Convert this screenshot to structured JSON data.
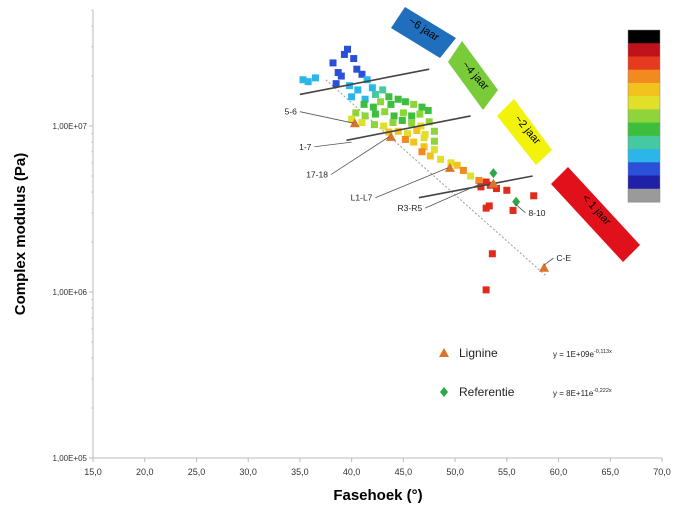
{
  "chart_data": {
    "type": "scatter",
    "xlabel": "Fasehoek (°)",
    "ylabel": "Complex modulus (Pa)",
    "xlim": [
      15,
      70
    ],
    "ylim": [
      100000,
      50000000
    ],
    "y_scale": "log",
    "x_ticks": [
      "15,0",
      "20,0",
      "25,0",
      "30,0",
      "35,0",
      "40,0",
      "45,0",
      "50,0",
      "55,0",
      "60,0",
      "65,0",
      "70,0"
    ],
    "y_ticks": [
      {
        "value": 100000,
        "label": "1,00E+05"
      },
      {
        "value": 1000000,
        "label": "1,00E+06"
      },
      {
        "value": 10000000,
        "label": "1,00E+07"
      }
    ],
    "grid": false,
    "colors": {
      "lignine": "#d9742a",
      "referentie": "#2aa84a",
      "fit_line": "#444444",
      "dashed_line": "#9a9a9a",
      "axis": "#bbbbbb"
    },
    "series": [
      {
        "name": "Lignine",
        "marker": "triangle",
        "color": "#d9742a",
        "points": [
          [
            40.3,
            10400000
          ],
          [
            43.8,
            8600000
          ],
          [
            49.5,
            5600000
          ],
          [
            53.7,
            4500000
          ],
          [
            58.6,
            1400000
          ]
        ]
      },
      {
        "name": "Referentie",
        "marker": "diamond",
        "color": "#2aa84a",
        "points": [
          [
            53.7,
            5200000
          ],
          [
            55.9,
            3500000
          ]
        ]
      },
      {
        "name": "",
        "marker": "square",
        "points": [
          [
            35.3,
            19000000,
            "#2ab7e8"
          ],
          [
            35.8,
            18500000,
            "#2ab7e8"
          ],
          [
            36.5,
            19500000,
            "#2ab7e8"
          ],
          [
            38.2,
            24000000,
            "#2a4fd8"
          ],
          [
            38.7,
            21000000,
            "#2a4fd8"
          ],
          [
            39.3,
            27000000,
            "#2a4fd8"
          ],
          [
            39.6,
            29000000,
            "#2a4fd8"
          ],
          [
            40.2,
            25500000,
            "#2a4fd8"
          ],
          [
            39.0,
            20000000,
            "#2a4fd8"
          ],
          [
            40.5,
            22000000,
            "#2a4fd8"
          ],
          [
            41.0,
            20500000,
            "#2a4fd8"
          ],
          [
            38.5,
            18000000,
            "#2a4fd8"
          ],
          [
            39.8,
            17500000,
            "#2ab7e8"
          ],
          [
            40.6,
            16500000,
            "#2ab7e8"
          ],
          [
            41.5,
            19000000,
            "#2ab7e8"
          ],
          [
            42.0,
            17000000,
            "#2ab7e8"
          ],
          [
            40.0,
            15000000,
            "#2ab7e8"
          ],
          [
            41.3,
            14500000,
            "#2ab7e8"
          ],
          [
            42.3,
            15500000,
            "#46c8a0"
          ],
          [
            43.0,
            16500000,
            "#46c8a0"
          ],
          [
            43.6,
            15000000,
            "#3dbf3d"
          ],
          [
            41.2,
            13500000,
            "#3dbf3d"
          ],
          [
            42.1,
            13000000,
            "#3dbf3d"
          ],
          [
            42.8,
            14000000,
            "#8ed43a"
          ],
          [
            43.8,
            13500000,
            "#3dbf3d"
          ],
          [
            44.5,
            14500000,
            "#3dbf3d"
          ],
          [
            45.2,
            14000000,
            "#3dbf3d"
          ],
          [
            46.0,
            13500000,
            "#8ed43a"
          ],
          [
            46.8,
            13000000,
            "#3dbf3d"
          ],
          [
            40.4,
            12000000,
            "#8ed43a"
          ],
          [
            41.3,
            11500000,
            "#8ed43a"
          ],
          [
            42.3,
            11800000,
            "#3dbf3d"
          ],
          [
            43.2,
            12200000,
            "#8ed43a"
          ],
          [
            44.1,
            11500000,
            "#3dbf3d"
          ],
          [
            45.0,
            12000000,
            "#8ed43a"
          ],
          [
            45.8,
            11500000,
            "#3dbf3d"
          ],
          [
            46.6,
            11800000,
            "#8ed43a"
          ],
          [
            47.4,
            12400000,
            "#3dbf3d"
          ],
          [
            40.0,
            11000000,
            "#e0e02a"
          ],
          [
            41.0,
            10500000,
            "#e0e02a"
          ],
          [
            42.2,
            10200000,
            "#8ed43a"
          ],
          [
            43.1,
            10000000,
            "#e0e02a"
          ],
          [
            44.0,
            10500000,
            "#8ed43a"
          ],
          [
            44.9,
            10800000,
            "#3dbf3d"
          ],
          [
            45.8,
            10400000,
            "#8ed43a"
          ],
          [
            46.7,
            10000000,
            "#e0e02a"
          ],
          [
            47.5,
            10600000,
            "#8ed43a"
          ],
          [
            43.6,
            9200000,
            "#f2c21f"
          ],
          [
            44.5,
            9300000,
            "#f2c21f"
          ],
          [
            45.4,
            9000000,
            "#e0e02a"
          ],
          [
            46.3,
            9400000,
            "#f2c21f"
          ],
          [
            47.1,
            8900000,
            "#e0e02a"
          ],
          [
            48.0,
            9300000,
            "#8ed43a"
          ],
          [
            45.2,
            8300000,
            "#f28a1f"
          ],
          [
            46.0,
            8000000,
            "#f2c21f"
          ],
          [
            47.0,
            8500000,
            "#e0e02a"
          ],
          [
            48.0,
            8100000,
            "#8ed43a"
          ],
          [
            47.0,
            7500000,
            "#f2c21f"
          ],
          [
            48.0,
            7200000,
            "#e0e02a"
          ],
          [
            46.8,
            7000000,
            "#f28a1f"
          ],
          [
            47.6,
            6600000,
            "#f2c21f"
          ],
          [
            48.6,
            6300000,
            "#e0e02a"
          ],
          [
            49.6,
            6000000,
            "#e0e02a"
          ],
          [
            50.2,
            5800000,
            "#f2c21f"
          ],
          [
            50.8,
            5400000,
            "#f28a1f"
          ],
          [
            51.5,
            5000000,
            "#e0e02a"
          ],
          [
            52.3,
            4700000,
            "#f28a1f"
          ],
          [
            53.0,
            4600000,
            "#e02a1a"
          ],
          [
            53.4,
            4400000,
            "#e02a1a"
          ],
          [
            54.0,
            4200000,
            "#e02a1a"
          ],
          [
            52.5,
            4300000,
            "#e02a1a"
          ],
          [
            53.3,
            3300000,
            "#e02a1a"
          ],
          [
            53.0,
            3200000,
            "#e02a1a"
          ],
          [
            55.0,
            4100000,
            "#e02a1a"
          ],
          [
            55.6,
            3100000,
            "#e02a1a"
          ],
          [
            57.6,
            3800000,
            "#e02a1a"
          ],
          [
            53.6,
            1700000,
            "#e02a1a"
          ],
          [
            53.0,
            1030000,
            "#e02a1a"
          ]
        ]
      }
    ],
    "fit_lines": [
      {
        "from": [
          35,
          15500000
        ],
        "to": [
          47.5,
          22000000
        ]
      },
      {
        "from": [
          39.5,
          8200000
        ],
        "to": [
          51.5,
          11500000
        ]
      },
      {
        "from": [
          46.5,
          3700000
        ],
        "to": [
          57.5,
          5000000
        ]
      }
    ],
    "dashed_line": {
      "from": [
        37.5,
        19000000
      ],
      "to": [
        58.8,
        1250000
      ]
    },
    "labels": [
      {
        "text": "5-6",
        "at": [
          35.0,
          12200000
        ],
        "pointer": [
          40.2,
          10400000
        ]
      },
      {
        "text": "1-7",
        "at": [
          36.4,
          7500000
        ],
        "pointer": [
          40.0,
          8000000
        ]
      },
      {
        "text": "17-18",
        "at": [
          38.0,
          5100000
        ],
        "pointer": [
          43.6,
          8600000
        ]
      },
      {
        "text": "L1-L7",
        "at": [
          42.3,
          3700000
        ],
        "pointer": [
          49.3,
          5600000
        ]
      },
      {
        "text": "R3-R5",
        "at": [
          47.1,
          3200000
        ],
        "pointer": [
          52.5,
          4500000
        ]
      },
      {
        "text": "8-10",
        "at": [
          56.8,
          3000000
        ],
        "pointer": [
          55.8,
          3400000
        ]
      },
      {
        "text": "C-E",
        "at": [
          59.5,
          1600000
        ],
        "pointer": [
          58.6,
          1450000
        ]
      }
    ],
    "age_bands": [
      {
        "text": "~6 jaar",
        "color": "#1f6fbd"
      },
      {
        "text": "~4 jaar",
        "color": "#7acb3a"
      },
      {
        "text": "~2 jaar",
        "color": "#f2f20a"
      },
      {
        "text": "< 1 jaar",
        "color": "#e0111b"
      }
    ],
    "color_scale": [
      "#000000",
      "#c0121a",
      "#e53a1e",
      "#f28a1f",
      "#f2c21f",
      "#e0e02a",
      "#8ed43a",
      "#3dbf3d",
      "#46c8a0",
      "#2ab7e8",
      "#2a4fd8",
      "#1f1fa8",
      "#9a9a9a"
    ],
    "legend": [
      {
        "label": "Lignine",
        "marker": "triangle",
        "color": "#d9742a",
        "equation": "y = 1E+09e",
        "exponent": "-0,113x"
      },
      {
        "label": "Referentie",
        "marker": "diamond",
        "color": "#2aa84a",
        "equation": "y = 8E+11e",
        "exponent": "-0,222x"
      }
    ]
  }
}
